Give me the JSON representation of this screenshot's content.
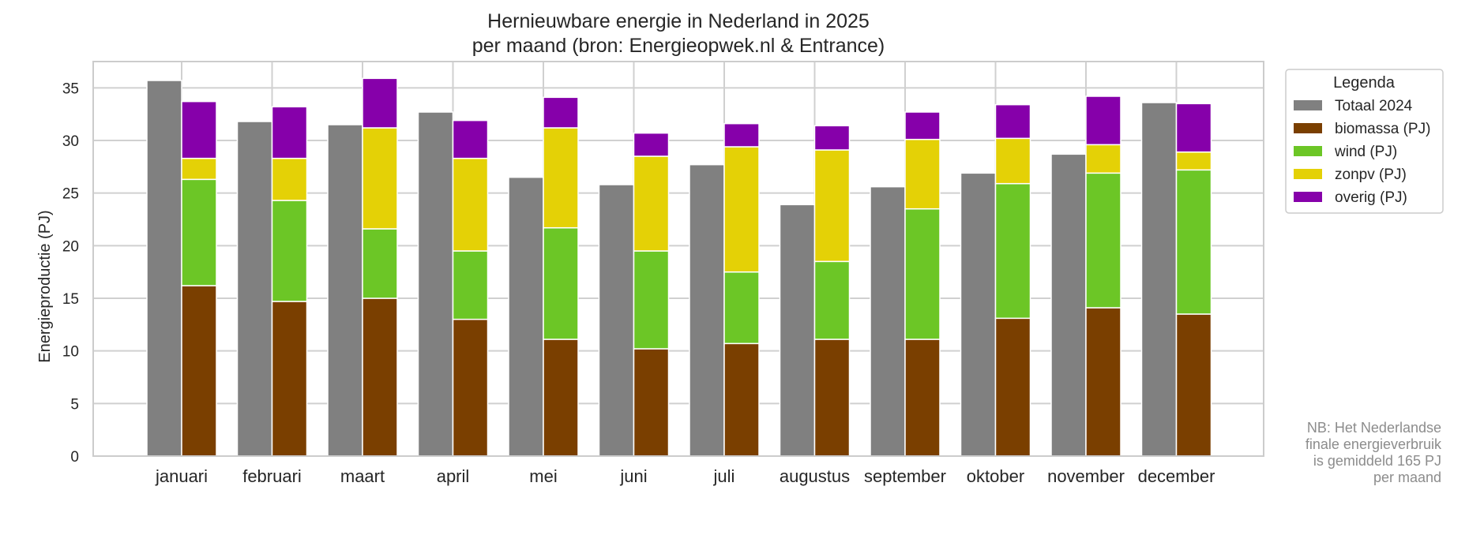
{
  "chart_data": {
    "type": "bar",
    "title": "Hernieuwbare energie in Nederland in 2025",
    "subtitle": "per maand (bron: Energieopwek.nl & Entrance)",
    "xlabel": "",
    "ylabel": "Energieproductie (PJ)",
    "ylim": [
      0,
      37.5
    ],
    "yticks": [
      0,
      5,
      10,
      15,
      20,
      25,
      30,
      35
    ],
    "grid": true,
    "categories": [
      "januari",
      "februari",
      "maart",
      "april",
      "mei",
      "juni",
      "juli",
      "augustus",
      "september",
      "oktober",
      "november",
      "december"
    ],
    "comparison_series": {
      "name": "Totaal 2024",
      "color": "#808080",
      "values": [
        35.7,
        31.8,
        31.5,
        32.7,
        26.5,
        25.8,
        27.7,
        23.9,
        25.6,
        26.9,
        28.7,
        33.6
      ]
    },
    "stacked_series": [
      {
        "name": "biomassa (PJ)",
        "color": "#7a3f00",
        "values": [
          16.2,
          14.7,
          15.0,
          13.0,
          11.1,
          10.2,
          10.7,
          11.1,
          11.1,
          13.1,
          14.1,
          13.5
        ]
      },
      {
        "name": "wind (PJ)",
        "color": "#6cc626",
        "values": [
          10.1,
          9.6,
          6.6,
          6.5,
          10.6,
          9.3,
          6.8,
          7.4,
          12.4,
          12.8,
          12.8,
          13.7
        ]
      },
      {
        "name": "zonpv (PJ)",
        "color": "#e4d106",
        "values": [
          2.0,
          4.0,
          9.6,
          8.8,
          9.5,
          9.0,
          11.9,
          10.6,
          6.6,
          4.3,
          2.7,
          1.7
        ]
      },
      {
        "name": "overig (PJ)",
        "color": "#8600aa",
        "values": [
          5.4,
          4.9,
          4.7,
          3.6,
          2.9,
          2.2,
          2.2,
          2.3,
          2.6,
          3.2,
          4.6,
          4.6
        ]
      }
    ],
    "legend": {
      "title": "Legenda",
      "placement": "outside-top-right",
      "entries": [
        "Totaal 2024",
        "biomassa (PJ)",
        "wind (PJ)",
        "zonpv (PJ)",
        "overig (PJ)"
      ]
    }
  },
  "note": "NB: Het Nederlandse\nfinale energieverbruik\nis gemiddeld 165 PJ\nper maand"
}
